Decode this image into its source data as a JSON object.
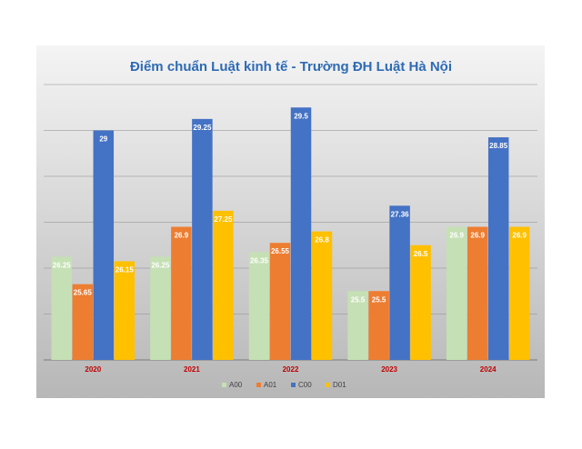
{
  "chart_data": {
    "type": "bar",
    "title": "Điểm chuẩn Luật kinh tế - Trường ĐH Luật Hà Nội",
    "xlabel": "",
    "ylabel": "",
    "categories": [
      "2020",
      "2021",
      "2022",
      "2023",
      "2024"
    ],
    "series": [
      {
        "name": "A00",
        "color": "#c5e0b4",
        "values": [
          26.25,
          26.25,
          26.35,
          25.5,
          26.9
        ]
      },
      {
        "name": "A01",
        "color": "#ed7d31",
        "values": [
          25.65,
          26.9,
          26.55,
          25.5,
          26.9
        ]
      },
      {
        "name": "C00",
        "color": "#4472c4",
        "values": [
          29,
          29.25,
          29.5,
          27.36,
          28.85
        ]
      },
      {
        "name": "D01",
        "color": "#ffc000",
        "values": [
          26.15,
          27.25,
          26.8,
          26.5,
          26.9
        ]
      }
    ],
    "ylim": [
      24,
      30
    ],
    "grid": true,
    "y_axis_visible": false,
    "legend": "bottom",
    "colors": {
      "panel_background_top": "#f4f4f4",
      "panel_background_bottom": "#b7b7b7",
      "gridline": "#8c8c8c",
      "title": "#2e6bb5",
      "tick_label": "#c00000",
      "data_label": "#ffffff"
    }
  }
}
